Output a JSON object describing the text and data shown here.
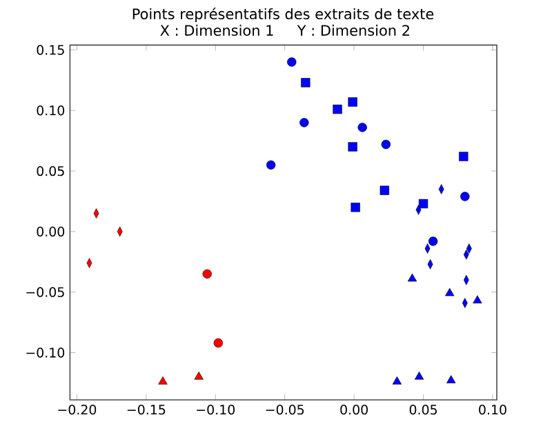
{
  "chart_data": {
    "type": "scatter",
    "title": "Points représentatifs des extraits de texte",
    "subtitle": "X : Dimension 1     Y : Dimension 2",
    "xlim": [
      -0.205,
      0.103
    ],
    "ylim": [
      -0.139,
      0.154
    ],
    "xticks": [
      {
        "value": -0.2,
        "label": "−0.20"
      },
      {
        "value": -0.15,
        "label": "−0.15"
      },
      {
        "value": -0.1,
        "label": "−0.10"
      },
      {
        "value": -0.05,
        "label": "−0.05"
      },
      {
        "value": 0,
        "label": "0.00"
      },
      {
        "value": 0.05,
        "label": "0.05"
      },
      {
        "value": 0.1,
        "label": "0.10"
      }
    ],
    "yticks": [
      {
        "value": -0.1,
        "label": "−0.10"
      },
      {
        "value": -0.05,
        "label": "−0.05"
      },
      {
        "value": 0,
        "label": "0.00"
      },
      {
        "value": 0.05,
        "label": "0.05"
      },
      {
        "value": 0.1,
        "label": "0.10"
      },
      {
        "value": 0.15,
        "label": "0.15"
      }
    ],
    "grid": false,
    "series": [
      {
        "color": "#ff0000",
        "marker": "diamond",
        "x": [
          -0.186,
          -0.169,
          -0.191
        ],
        "values": [
          0.015,
          0.0,
          -0.026
        ]
      },
      {
        "color": "#ff0000",
        "marker": "circle",
        "x": [
          -0.106,
          -0.098
        ],
        "values": [
          -0.035,
          -0.092
        ]
      },
      {
        "color": "#ff0000",
        "marker": "triangle",
        "x": [
          -0.138,
          -0.112
        ],
        "values": [
          -0.124,
          -0.12
        ]
      },
      {
        "color": "#0000ff",
        "marker": "circle",
        "x": [
          -0.045,
          -0.036,
          -0.06,
          0.006,
          0.023,
          0.08,
          0.057
        ],
        "values": [
          0.14,
          0.09,
          0.055,
          0.086,
          0.072,
          0.029,
          -0.008
        ]
      },
      {
        "color": "#0000ff",
        "marker": "square",
        "x": [
          -0.035,
          -0.012,
          -0.001,
          -0.001,
          0.001,
          0.022,
          0.05,
          0.079
        ],
        "values": [
          0.123,
          0.101,
          0.107,
          0.07,
          0.02,
          0.034,
          0.023,
          0.062
        ]
      },
      {
        "color": "#0000ff",
        "marker": "diamond",
        "x": [
          0.063,
          0.0465,
          0.053,
          0.055,
          0.083,
          0.081,
          0.081,
          0.08
        ],
        "values": [
          0.035,
          0.018,
          -0.014,
          -0.027,
          -0.014,
          -0.019,
          -0.04,
          -0.059
        ]
      },
      {
        "color": "#0000ff",
        "marker": "triangle",
        "x": [
          0.042,
          0.069,
          0.089,
          0.031,
          0.047,
          0.07
        ],
        "values": [
          -0.039,
          -0.051,
          -0.057,
          -0.124,
          -0.12,
          -0.123
        ]
      }
    ]
  }
}
